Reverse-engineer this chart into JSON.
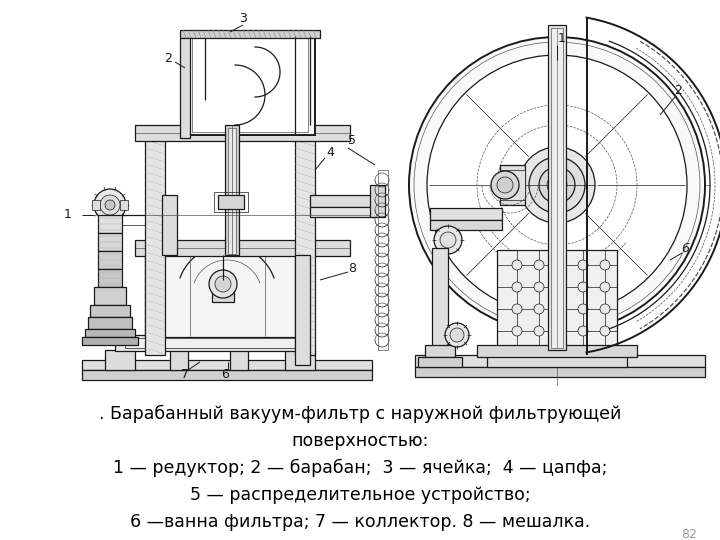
{
  "caption_lines": [
    ". Барабанный вакуум-фильтр с наружной фильтрующей",
    "поверхностью:",
    "1 — редуктор; 2 — барабан;  3 — ячейка;  4 — цапфа;",
    "5 — распределительное устройство;",
    "6 —ванна фильтра; 7 — коллектор. 8 — мешалка."
  ],
  "page_number": "82",
  "bg_color": "#ffffff",
  "text_color": "#000000",
  "caption_font_size": 12.5,
  "page_num_size": 9,
  "lw_main": 0.9,
  "lw_thick": 1.4,
  "lw_thin": 0.5,
  "color_main": "#1a1a1a",
  "color_mid": "#555555",
  "color_light": "#888888"
}
